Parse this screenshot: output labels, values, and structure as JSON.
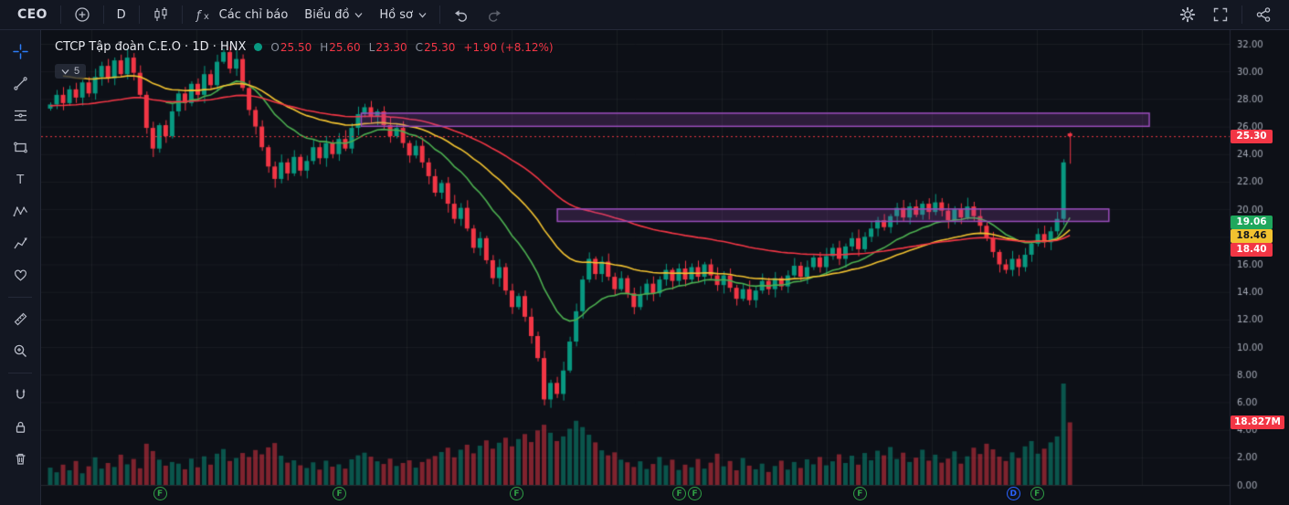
{
  "topbar": {
    "symbol": "CEO",
    "interval": "D",
    "indicators_label": "Các chỉ báo",
    "chart_menu_label": "Biểu đồ",
    "profile_menu_label": "Hồ sơ",
    "right_icons": [
      "settings-gear",
      "fullscreen",
      "share"
    ]
  },
  "left_toolbar_tools": [
    "crosshair",
    "trend-line",
    "fib-retracement",
    "shapes",
    "text",
    "xabcd-pattern",
    "forecast",
    "emoji",
    "ruler",
    "zoom-in",
    "magnet",
    "lock-all-drawings",
    "remove-objects"
  ],
  "legend": {
    "title": "CTCP Tập đoàn C.E.O · 1D · HNX",
    "o_label": "O",
    "o_value": "25.50",
    "h_label": "H",
    "h_value": "25.60",
    "l_label": "L",
    "l_value": "23.30",
    "c_label": "C",
    "c_value": "25.30",
    "change": "+1.90 (+8.12%)",
    "collapsed_indicators_count": "5"
  },
  "colors": {
    "up": "#089981",
    "down": "#f23645",
    "accent_blue": "#2d7cf7",
    "axis_text": "#a6abb7",
    "grid": "rgba(255,255,255,0.05)",
    "border": "#242938"
  },
  "price_tags": [
    {
      "name": "last-price-tag",
      "text": "25.30",
      "price": 25.3,
      "bg": "#f23645",
      "fg": "#ffffff"
    },
    {
      "name": "ma-fast-value-tag",
      "text": "19.06",
      "price": 19.06,
      "bg": "#1fa75d",
      "fg": "#ffffff"
    },
    {
      "name": "ma-mid-value-tag",
      "text": "18.46",
      "price": 18.46,
      "bg": "#f2c230",
      "fg": "#15181f"
    },
    {
      "name": "ma-slow-value-tag",
      "text": "18.40",
      "price": 18.4,
      "bg": "#f23645",
      "fg": "#ffffff"
    }
  ],
  "volume_tag": {
    "name": "volume-value-tag",
    "text": "18.827M",
    "price": 4.55,
    "bg": "#f23645",
    "fg": "#ffffff"
  },
  "event_badges": [
    {
      "frac": 0.1,
      "letter": "F",
      "color": "#2f9e44"
    },
    {
      "frac": 0.251,
      "letter": "F",
      "color": "#2f9e44"
    },
    {
      "frac": 0.4,
      "letter": "F",
      "color": "#2f9e44"
    },
    {
      "frac": 0.537,
      "letter": "F",
      "color": "#2f9e44"
    },
    {
      "frac": 0.55,
      "letter": "F",
      "color": "#2f9e44"
    },
    {
      "frac": 0.689,
      "letter": "F",
      "color": "#2f9e44"
    },
    {
      "frac": 0.818,
      "letter": "D",
      "color": "#2962ff"
    },
    {
      "frac": 0.838,
      "letter": "F",
      "color": "#2f9e44"
    }
  ],
  "chart_data": {
    "type": "candlestick",
    "title": "CTCP Tập đoàn C.E.O",
    "exchange": "HNX",
    "interval": "1D",
    "y_axis": {
      "min": 0,
      "max": 32,
      "step": 2
    },
    "current_price": 25.3,
    "first_open": 27.3,
    "last_candle": {
      "open": 25.5,
      "high": 25.6,
      "low": 23.3,
      "close": 25.3
    },
    "closes": [
      27.6,
      28.3,
      27.7,
      28.7,
      28.1,
      29.2,
      28.4,
      29.6,
      30.4,
      29.5,
      30.8,
      29.8,
      31.0,
      29.9,
      28.3,
      25.9,
      24.4,
      26.1,
      25.3,
      27.1,
      28.4,
      27.7,
      29.1,
      28.3,
      29.8,
      29.0,
      30.7,
      31.4,
      30.2,
      30.9,
      28.8,
      27.2,
      26.0,
      24.5,
      23.1,
      22.2,
      23.4,
      22.6,
      23.8,
      22.8,
      23.5,
      24.5,
      23.7,
      24.8,
      24.0,
      25.1,
      24.4,
      25.9,
      26.9,
      27.4,
      26.7,
      27.1,
      26.1,
      25.3,
      25.9,
      24.8,
      23.9,
      24.6,
      23.4,
      22.4,
      21.2,
      21.9,
      20.4,
      19.3,
      20.1,
      18.6,
      17.2,
      17.9,
      16.3,
      15.0,
      15.8,
      14.1,
      12.9,
      13.7,
      12.2,
      10.8,
      9.2,
      6.2,
      7.4,
      6.6,
      8.3,
      10.4,
      12.6,
      14.9,
      16.4,
      15.3,
      16.2,
      15.1,
      14.2,
      15.0,
      13.9,
      12.9,
      13.8,
      14.6,
      13.9,
      14.9,
      15.6,
      14.8,
      15.7,
      14.9,
      15.8,
      15.1,
      16.0,
      15.2,
      14.5,
      15.2,
      14.3,
      13.5,
      14.2,
      13.4,
      14.1,
      14.8,
      14.2,
      15.0,
      14.4,
      15.2,
      15.9,
      15.1,
      15.8,
      16.5,
      15.8,
      16.6,
      17.2,
      16.4,
      17.3,
      17.9,
      17.1,
      18.0,
      18.6,
      19.2,
      18.7,
      19.5,
      20.1,
      19.4,
      20.2,
      19.6,
      20.4,
      19.8,
      20.5,
      19.9,
      19.2,
      20.0,
      19.4,
      20.2,
      19.5,
      18.8,
      17.9,
      16.9,
      16.0,
      15.6,
      16.4,
      15.8,
      16.7,
      17.5,
      18.2,
      17.6,
      18.4,
      19.3,
      23.4,
      25.3
    ],
    "volumes_millions": [
      5.2,
      3.8,
      6.1,
      4.4,
      7.2,
      3.5,
      5.6,
      8.3,
      4.9,
      6.6,
      5.4,
      9.1,
      6.2,
      7.8,
      5.0,
      12.4,
      10.2,
      7.6,
      5.8,
      6.9,
      6.4,
      4.7,
      7.9,
      5.3,
      8.6,
      6.1,
      9.4,
      10.8,
      7.2,
      8.1,
      9.6,
      8.4,
      10.5,
      9.2,
      11.3,
      12.6,
      8.8,
      6.7,
      7.4,
      5.9,
      5.1,
      6.8,
      4.6,
      7.3,
      5.5,
      6.2,
      4.9,
      7.7,
      8.9,
      9.7,
      8.5,
      7.1,
      6.3,
      7.9,
      5.7,
      6.6,
      7.4,
      5.2,
      6.9,
      7.8,
      8.7,
      9.9,
      11.2,
      8.3,
      10.6,
      12.1,
      9.5,
      11.8,
      13.4,
      10.9,
      12.7,
      14.2,
      11.6,
      13.8,
      15.3,
      12.9,
      16.4,
      18.1,
      15.7,
      13.2,
      14.6,
      16.9,
      19.3,
      17.4,
      15.1,
      12.8,
      10.4,
      8.9,
      9.8,
      7.6,
      6.8,
      5.4,
      7.1,
      4.8,
      6.3,
      8.4,
      5.9,
      7.6,
      4.5,
      6.1,
      5.3,
      7.8,
      4.9,
      6.7,
      9.4,
      5.6,
      7.2,
      4.4,
      8.1,
      5.8,
      4.7,
      6.4,
      3.9,
      5.7,
      7.3,
      4.6,
      6.9,
      5.1,
      7.7,
      6.2,
      8.4,
      5.9,
      7.1,
      9.2,
      6.6,
      8.8,
      6.1,
      9.6,
      7.4,
      10.3,
      8.9,
      11.4,
      7.8,
      9.7,
      6.9,
      8.2,
      10.6,
      7.3,
      9.1,
      6.7,
      7.9,
      10.1,
      6.4,
      8.6,
      11.2,
      9.3,
      12.4,
      10.7,
      8.5,
      7.2,
      9.8,
      8.1,
      11.6,
      13.2,
      9.4,
      10.9,
      12.8,
      14.6,
      30.5,
      18.827
    ],
    "moving_averages": [
      {
        "name": "ma-fast",
        "color": "#4caf50",
        "alpha": 0.12,
        "seed": 28.5,
        "start_index": 18,
        "last_value": 19.06
      },
      {
        "name": "ma-mid",
        "color": "#f2c230",
        "alpha": 0.055,
        "seed": 30.0,
        "start_index": 2,
        "last_value": 18.46
      },
      {
        "name": "ma-slow",
        "color": "#f23645",
        "alpha": 0.028,
        "seed": 27.5,
        "start_index": 0,
        "last_value": 18.4
      }
    ],
    "zones": [
      {
        "from_frac": 0.269,
        "to_frac": 0.932,
        "price_top": 27.0,
        "price_bottom": 26.05,
        "stroke": "#9b4dbc",
        "fill": "rgba(155,77,188,0.22)"
      },
      {
        "from_frac": 0.434,
        "to_frac": 0.898,
        "price_top": 20.05,
        "price_bottom": 19.15,
        "stroke": "#9b4dbc",
        "fill": "rgba(155,77,188,0.22)"
      }
    ]
  }
}
